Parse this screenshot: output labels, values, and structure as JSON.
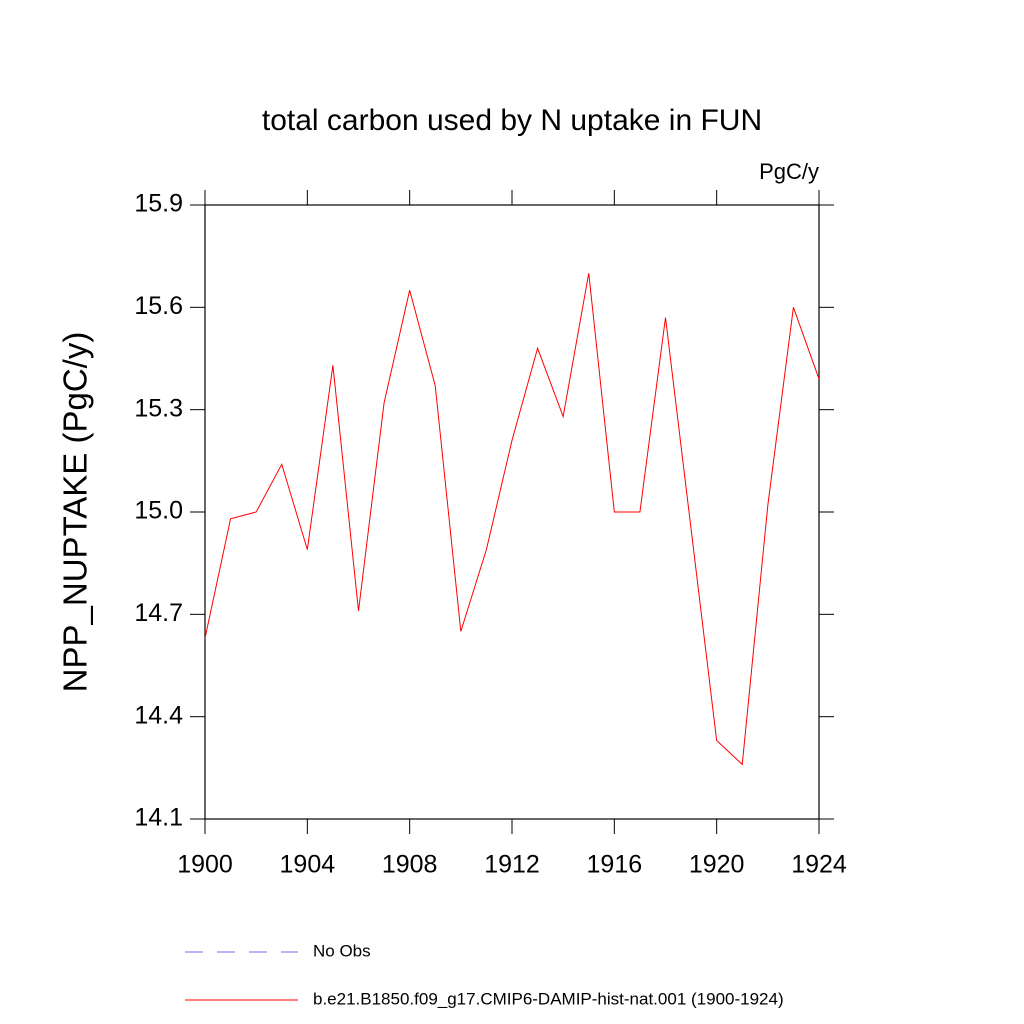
{
  "chart_data": {
    "type": "line",
    "title": "total carbon used by N uptake in FUN",
    "units": "PgC/y",
    "y_label": "NPP_NUPTAKE  (PgC/y)",
    "x": [
      1900,
      1901,
      1902,
      1903,
      1904,
      1905,
      1906,
      1907,
      1908,
      1909,
      1910,
      1911,
      1912,
      1913,
      1914,
      1915,
      1916,
      1917,
      1918,
      1919,
      1920,
      1921,
      1922,
      1923,
      1924
    ],
    "series": [
      {
        "name": "b.e21.B1850.f09_g17.CMIP6-DAMIP-hist-nat.001 (1900-1924)",
        "color": "#ff0000",
        "values": [
          14.63,
          14.98,
          15.0,
          15.14,
          14.89,
          15.43,
          14.71,
          15.32,
          15.65,
          15.37,
          14.65,
          14.89,
          15.21,
          15.48,
          15.28,
          15.7,
          15.0,
          15.0,
          15.57,
          14.95,
          14.33,
          14.26,
          15.02,
          15.6,
          15.39
        ]
      }
    ],
    "legend_extra": [
      {
        "name": "No Obs",
        "color": "#7b68ee",
        "dashed": true
      }
    ],
    "xlim": [
      1900,
      1924
    ],
    "xticks": [
      1900,
      1904,
      1908,
      1912,
      1916,
      1920,
      1924
    ],
    "ylim": [
      14.1,
      15.9
    ],
    "yticks": [
      {
        "value": 14.1,
        "label": "14.1"
      },
      {
        "value": 14.4,
        "label": "14.4"
      },
      {
        "value": 14.7,
        "label": "14.7"
      },
      {
        "value": 15.0,
        "label": "15.0"
      },
      {
        "value": 15.3,
        "label": "15.3"
      },
      {
        "value": 15.6,
        "label": "15.6"
      },
      {
        "value": 15.9,
        "label": "15.9"
      }
    ]
  }
}
